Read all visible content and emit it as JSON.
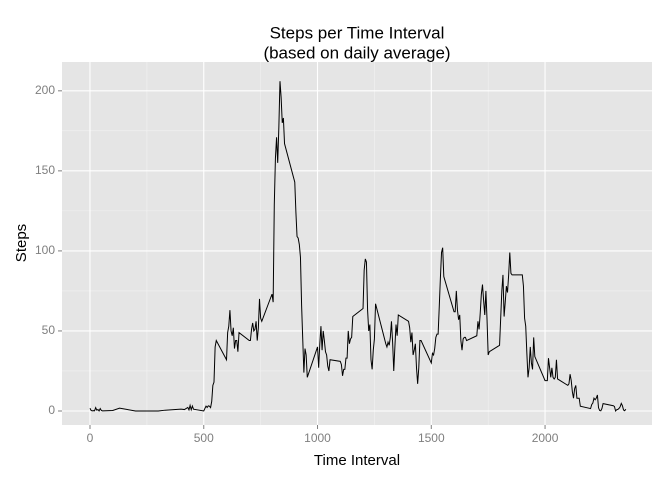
{
  "chart_data": {
    "type": "line",
    "title": "Steps per Time Interval",
    "subtitle": "(based on daily average)",
    "x_label": "Time Interval",
    "y_label": "Steps",
    "x": [
      0,
      5,
      10,
      15,
      20,
      25,
      30,
      35,
      40,
      45,
      50,
      55,
      100,
      130,
      200,
      230,
      300,
      330,
      400,
      415,
      430,
      435,
      440,
      445,
      450,
      455,
      500,
      505,
      510,
      515,
      520,
      525,
      530,
      535,
      540,
      545,
      550,
      555,
      600,
      605,
      610,
      615,
      620,
      625,
      630,
      635,
      640,
      645,
      650,
      655,
      700,
      705,
      710,
      715,
      720,
      725,
      730,
      735,
      740,
      745,
      750,
      755,
      800,
      805,
      810,
      815,
      820,
      825,
      830,
      835,
      840,
      845,
      850,
      855,
      900,
      905,
      910,
      915,
      920,
      925,
      930,
      935,
      940,
      945,
      950,
      955,
      1000,
      1005,
      1010,
      1015,
      1020,
      1025,
      1030,
      1035,
      1040,
      1045,
      1050,
      1055,
      1100,
      1105,
      1110,
      1115,
      1120,
      1125,
      1130,
      1135,
      1140,
      1145,
      1150,
      1155,
      1200,
      1205,
      1210,
      1215,
      1220,
      1225,
      1230,
      1235,
      1240,
      1245,
      1250,
      1255,
      1300,
      1305,
      1310,
      1315,
      1320,
      1325,
      1330,
      1335,
      1340,
      1345,
      1350,
      1355,
      1400,
      1405,
      1410,
      1415,
      1420,
      1425,
      1430,
      1435,
      1440,
      1445,
      1450,
      1455,
      1500,
      1505,
      1510,
      1515,
      1520,
      1525,
      1530,
      1535,
      1540,
      1545,
      1550,
      1555,
      1600,
      1605,
      1610,
      1615,
      1620,
      1625,
      1630,
      1635,
      1640,
      1645,
      1650,
      1655,
      1700,
      1705,
      1710,
      1715,
      1720,
      1725,
      1730,
      1735,
      1740,
      1745,
      1750,
      1755,
      1800,
      1805,
      1810,
      1815,
      1820,
      1825,
      1830,
      1835,
      1840,
      1845,
      1850,
      1855,
      1900,
      1905,
      1910,
      1915,
      1920,
      1925,
      1930,
      1935,
      1940,
      1945,
      1950,
      1955,
      2000,
      2005,
      2010,
      2015,
      2020,
      2025,
      2030,
      2035,
      2040,
      2045,
      2050,
      2055,
      2100,
      2105,
      2110,
      2115,
      2120,
      2125,
      2130,
      2135,
      2140,
      2145,
      2150,
      2155,
      2200,
      2205,
      2210,
      2215,
      2220,
      2225,
      2230,
      2235,
      2240,
      2245,
      2250,
      2255,
      2300,
      2305,
      2310,
      2315,
      2320,
      2325,
      2330,
      2335,
      2340,
      2345,
      2350,
      2355
    ],
    "values": [
      1.7,
      0.3,
      0.1,
      0.2,
      0.1,
      2.1,
      0.5,
      0.9,
      0,
      1.5,
      0.3,
      0.1,
      0.3,
      1.8,
      0,
      0,
      0,
      0.5,
      1.2,
      0.9,
      2.2,
      0.7,
      3.5,
      0.8,
      3.1,
      1.1,
      0,
      1.6,
      3,
      2.2,
      3.2,
      3,
      2.1,
      6,
      16,
      18,
      40,
      44,
      32,
      49,
      53,
      63,
      50,
      47,
      52,
      39,
      44,
      44,
      37,
      49,
      44,
      44,
      51,
      55,
      50,
      51,
      56,
      44,
      52,
      70,
      58,
      56,
      73,
      68,
      129,
      158,
      171,
      155,
      177,
      206,
      196,
      180,
      183,
      167,
      143,
      124,
      109,
      108,
      104,
      96,
      66,
      45,
      24,
      39,
      35,
      21,
      40,
      27,
      42,
      53,
      38,
      50,
      44,
      37,
      35,
      28,
      25,
      32,
      31,
      29,
      22,
      26,
      26,
      33,
      33,
      50,
      42,
      45,
      46,
      59,
      64,
      88,
      95,
      93,
      63,
      50,
      54,
      32,
      26,
      38,
      45,
      67,
      42,
      40,
      43,
      41,
      46,
      56,
      43,
      25,
      40,
      54,
      47,
      60,
      56,
      52,
      43,
      49,
      35,
      38,
      42,
      27,
      17,
      27,
      44,
      44,
      30,
      36,
      35,
      39,
      46,
      48,
      48,
      65,
      83,
      99,
      102,
      84,
      62,
      62,
      75,
      63,
      57,
      60,
      44,
      38,
      45,
      46,
      46,
      44,
      47,
      56,
      51,
      61,
      73,
      79,
      69,
      60,
      75,
      57,
      35,
      37,
      41,
      58,
      75,
      85,
      59,
      68,
      78,
      74,
      85,
      99,
      86,
      85,
      85,
      78,
      58,
      53,
      36,
      21,
      27,
      40,
      30,
      26,
      46,
      34,
      19,
      19,
      19,
      33,
      27,
      21,
      27,
      21,
      20,
      21,
      32,
      20,
      16,
      17,
      23,
      19,
      12,
      8,
      14,
      16,
      8,
      8,
      8,
      3,
      1.5,
      4,
      5,
      8,
      7,
      8,
      10,
      2,
      0.3,
      0.1,
      1.6,
      4.6,
      3.3,
      2.8,
      0,
      0.8,
      1,
      1.6,
      2.6,
      4.7,
      3.3,
      0.6,
      0.2,
      1.1
    ],
    "color": "#000000",
    "xlim": [
      -123,
      2470
    ],
    "xticks": [
      0,
      500,
      1000,
      1500,
      2000
    ],
    "ylim": [
      -8.75,
      218
    ],
    "yticks": [
      0,
      50,
      100,
      150,
      200
    ],
    "grid": true
  }
}
